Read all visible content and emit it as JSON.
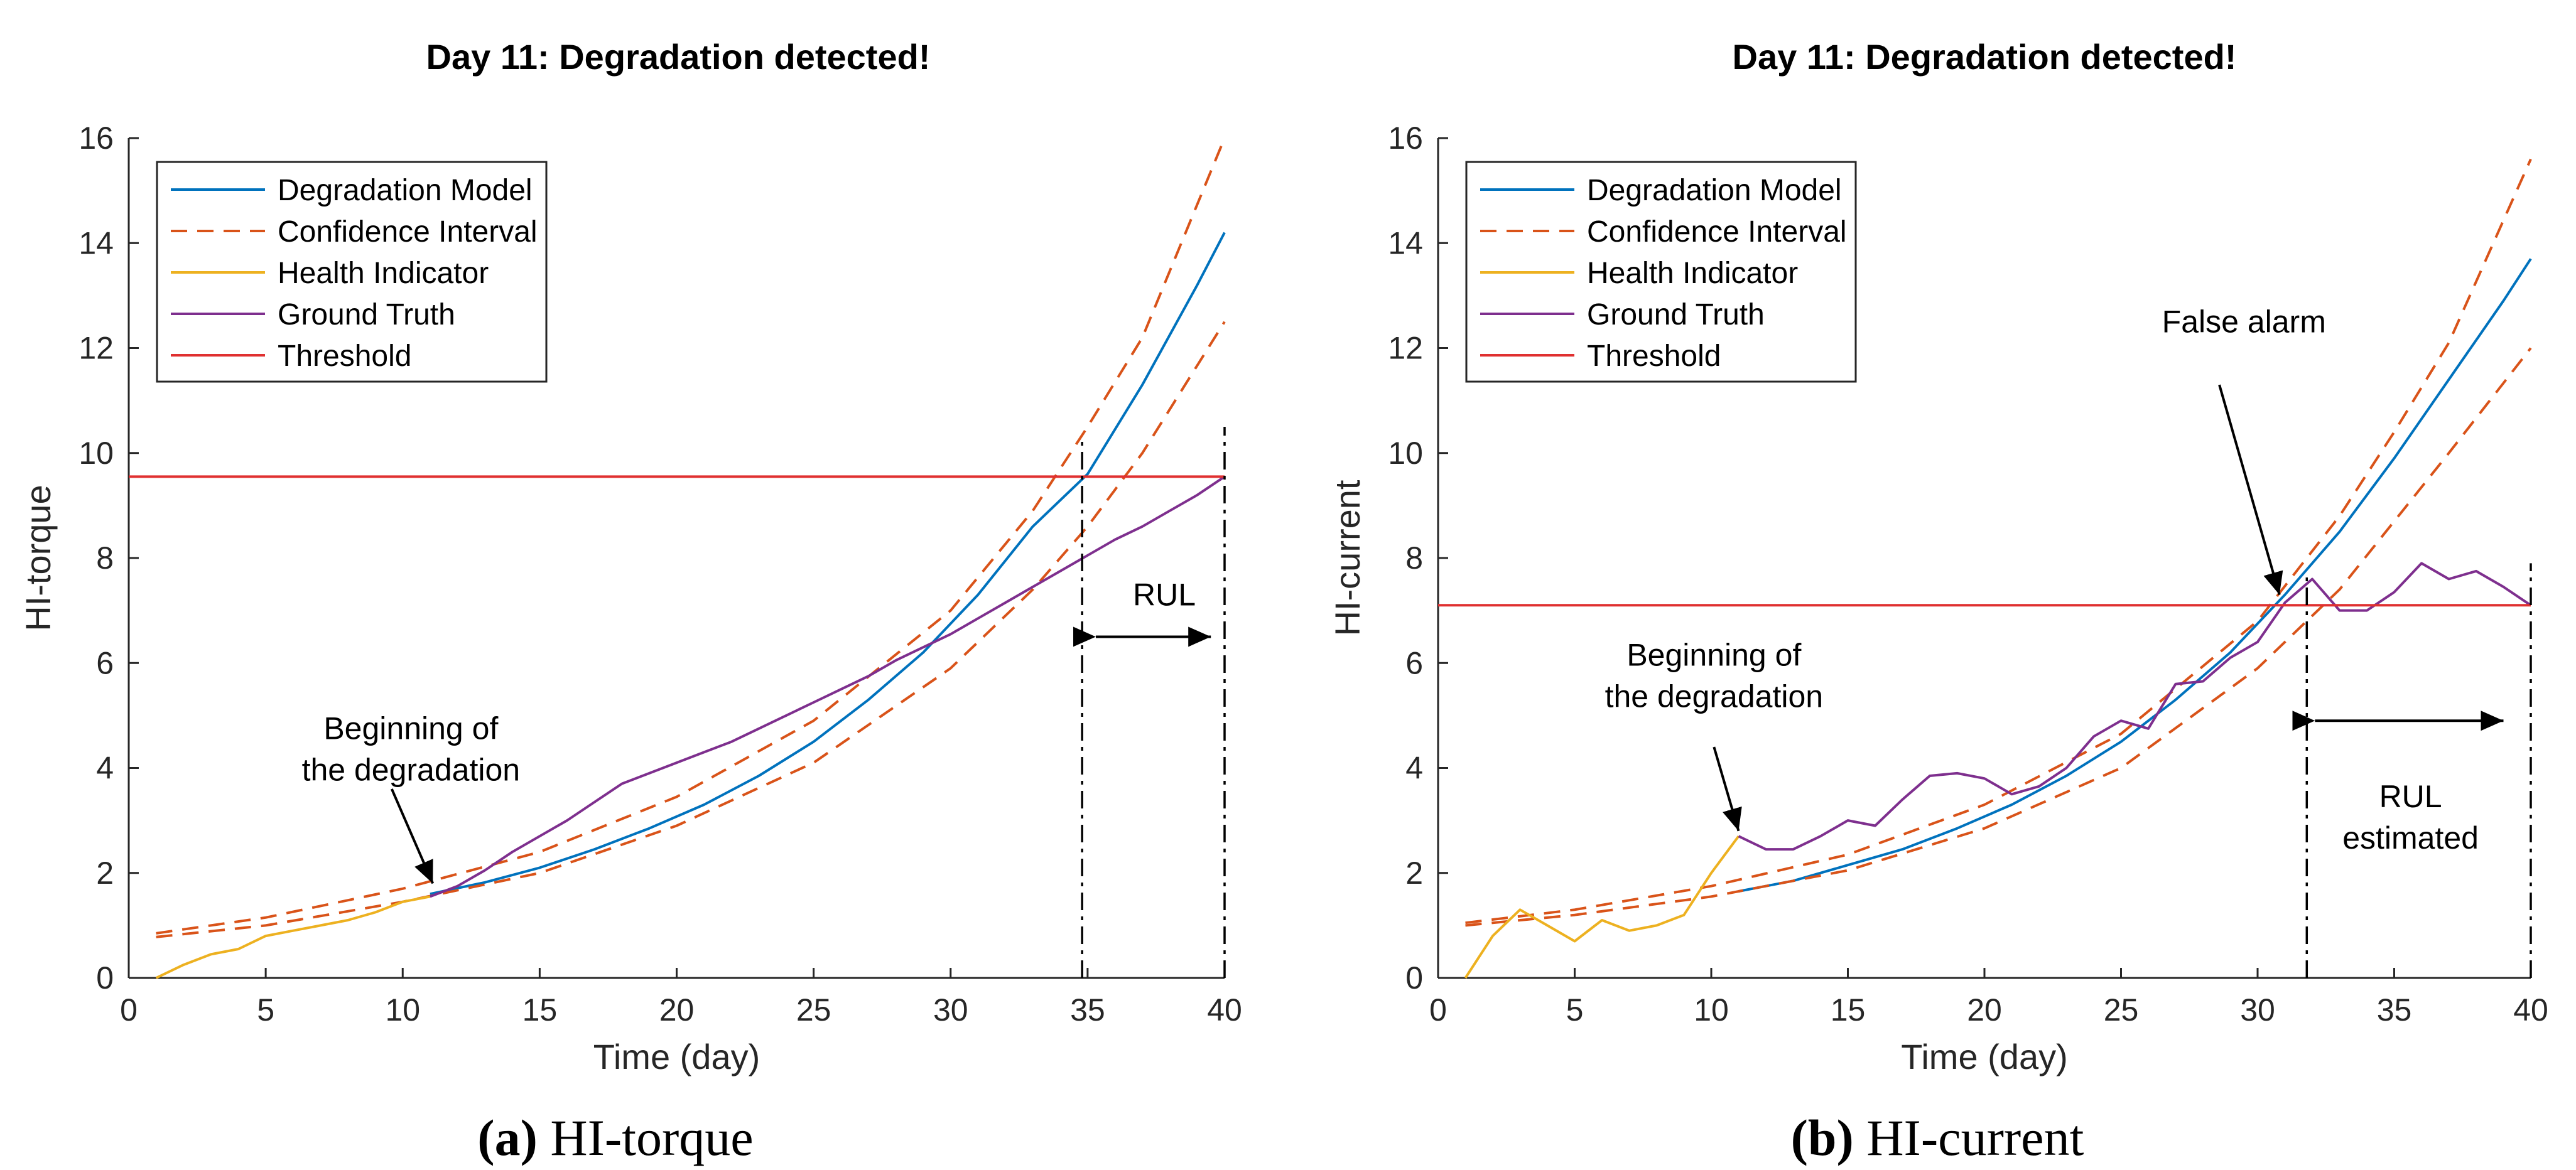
{
  "chart_data": [
    {
      "type": "line",
      "id": "a",
      "title": "Day 11: Degradation detected!",
      "xlabel": "Time (day)",
      "ylabel": "HI-torque",
      "xlim": [
        0,
        40
      ],
      "ylim": [
        0,
        16
      ],
      "xticks": [
        0,
        5,
        10,
        15,
        20,
        25,
        30,
        35,
        40
      ],
      "yticks": [
        0,
        2,
        4,
        6,
        8,
        10,
        12,
        14,
        16
      ],
      "caption_letter": "(a)",
      "caption_text": " HI-torque",
      "legend": {
        "placement": "top-left",
        "entries": [
          "Degradation Model",
          "Confidence Interval",
          "Health Indicator",
          "Ground Truth",
          "Threshold"
        ]
      },
      "series": [
        {
          "name": "Degradation Model",
          "style": "solid",
          "color": "#0072BD",
          "x": [
            11,
            13,
            15,
            17,
            19,
            21,
            23,
            25,
            27,
            29,
            31,
            33,
            35,
            37,
            39,
            40
          ],
          "y": [
            1.6,
            1.82,
            2.1,
            2.45,
            2.85,
            3.3,
            3.85,
            4.5,
            5.3,
            6.2,
            7.3,
            8.6,
            9.6,
            11.3,
            13.2,
            14.2
          ]
        },
        {
          "name": "Confidence Interval",
          "style": "dashed",
          "color": "#D95319",
          "x": [
            1,
            5,
            10,
            15,
            20,
            25,
            30,
            33,
            35,
            37,
            40
          ],
          "y": [
            0.85,
            1.15,
            1.7,
            2.4,
            3.45,
            4.9,
            7.0,
            8.9,
            10.5,
            12.2,
            16.0
          ]
        },
        {
          "name": "Confidence Interval",
          "style": "dashed",
          "color": "#D95319",
          "x": [
            1,
            5,
            10,
            15,
            20,
            25,
            30,
            33,
            35,
            37,
            40
          ],
          "y": [
            0.78,
            1.0,
            1.45,
            2.0,
            2.9,
            4.1,
            5.9,
            7.4,
            8.6,
            10.0,
            12.5
          ]
        },
        {
          "name": "Health Indicator",
          "style": "solid",
          "color": "#EDB120",
          "x": [
            1,
            2,
            3,
            4,
            5,
            6,
            7,
            8,
            9,
            10,
            11
          ],
          "y": [
            0.0,
            0.25,
            0.45,
            0.55,
            0.8,
            0.9,
            1.0,
            1.1,
            1.25,
            1.45,
            1.55
          ]
        },
        {
          "name": "Ground Truth",
          "style": "solid",
          "color": "#7E2F8E",
          "x": [
            11,
            12,
            13,
            14,
            15,
            16,
            17,
            18,
            19,
            20,
            21,
            22,
            23,
            24,
            25,
            26,
            27,
            28,
            29,
            30,
            31,
            32,
            33,
            34,
            35,
            36,
            37,
            38,
            39,
            40
          ],
          "y": [
            1.55,
            1.75,
            2.05,
            2.4,
            2.7,
            3.0,
            3.35,
            3.7,
            3.9,
            4.1,
            4.3,
            4.5,
            4.75,
            5.0,
            5.25,
            5.5,
            5.75,
            6.05,
            6.3,
            6.55,
            6.85,
            7.15,
            7.45,
            7.75,
            8.05,
            8.35,
            8.6,
            8.9,
            9.2,
            9.55
          ]
        },
        {
          "name": "Threshold",
          "style": "solid",
          "color": "#E03030",
          "x": [
            0,
            40
          ],
          "y": [
            9.55,
            9.55
          ]
        }
      ],
      "vlines": [
        {
          "x": 34.8,
          "y0": 0,
          "y1": 10.3
        },
        {
          "x": 40,
          "y0": 0,
          "y1": 10.5
        }
      ],
      "arrows": [
        {
          "from": [
            35.3,
            6.5
          ],
          "to": [
            39.5,
            6.5
          ],
          "double": true
        }
      ],
      "annotations": [
        {
          "lines": [
            "RUL"
          ],
          "x": 37.8,
          "y": 7.1,
          "arrow_from": null,
          "arrow_to": null
        },
        {
          "lines": [
            "Beginning of",
            "the degradation"
          ],
          "x": 10.3,
          "y": 4.55,
          "arrow_from": [
            9.6,
            3.6
          ],
          "arrow_to": [
            11.1,
            1.8
          ]
        }
      ]
    },
    {
      "type": "line",
      "id": "b",
      "title": "Day 11: Degradation detected!",
      "xlabel": "Time (day)",
      "ylabel": "HI-current",
      "xlim": [
        0,
        40
      ],
      "ylim": [
        0,
        16
      ],
      "xticks": [
        0,
        5,
        10,
        15,
        20,
        25,
        30,
        35,
        40
      ],
      "yticks": [
        0,
        2,
        4,
        6,
        8,
        10,
        12,
        14,
        16
      ],
      "caption_letter": "(b)",
      "caption_text": " HI-current",
      "legend": {
        "placement": "top-left",
        "entries": [
          "Degradation Model",
          "Confidence Interval",
          "Health Indicator",
          "Ground Truth",
          "Threshold"
        ]
      },
      "series": [
        {
          "name": "Degradation Model",
          "style": "solid",
          "color": "#0072BD",
          "x": [
            11,
            13,
            15,
            17,
            19,
            21,
            23,
            25,
            27,
            29,
            31,
            33,
            35,
            37,
            39,
            40
          ],
          "y": [
            1.65,
            1.85,
            2.15,
            2.45,
            2.85,
            3.3,
            3.85,
            4.5,
            5.3,
            6.2,
            7.3,
            8.5,
            9.9,
            11.4,
            12.9,
            13.7
          ]
        },
        {
          "name": "Confidence Interval",
          "style": "dashed",
          "color": "#D95319",
          "x": [
            1,
            5,
            10,
            15,
            20,
            25,
            30,
            33,
            35,
            37,
            40
          ],
          "y": [
            1.05,
            1.3,
            1.75,
            2.35,
            3.3,
            4.65,
            6.8,
            8.8,
            10.4,
            12.1,
            15.6
          ]
        },
        {
          "name": "Confidence Interval",
          "style": "dashed",
          "color": "#D95319",
          "x": [
            1,
            5,
            10,
            15,
            20,
            25,
            30,
            33,
            35,
            37,
            40
          ],
          "y": [
            1.0,
            1.2,
            1.55,
            2.05,
            2.85,
            4.0,
            5.9,
            7.4,
            8.7,
            10.0,
            12.0
          ]
        },
        {
          "name": "Health Indicator",
          "style": "solid",
          "color": "#EDB120",
          "x": [
            1,
            2,
            3,
            4,
            5,
            6,
            7,
            8,
            9,
            10,
            11
          ],
          "y": [
            0.0,
            0.8,
            1.3,
            1.0,
            0.7,
            1.1,
            0.9,
            1.0,
            1.2,
            2.0,
            2.7
          ]
        },
        {
          "name": "Ground Truth",
          "style": "solid",
          "color": "#7E2F8E",
          "x": [
            11,
            12,
            13,
            14,
            15,
            16,
            17,
            18,
            19,
            20,
            21,
            22,
            23,
            24,
            25,
            26,
            27,
            28,
            29,
            30,
            31,
            32,
            33,
            34,
            35,
            36,
            37,
            38,
            39,
            40
          ],
          "y": [
            2.7,
            2.45,
            2.45,
            2.7,
            3.0,
            2.9,
            3.4,
            3.85,
            3.9,
            3.8,
            3.5,
            3.65,
            4.0,
            4.6,
            4.9,
            4.75,
            5.6,
            5.65,
            6.1,
            6.4,
            7.15,
            7.6,
            7.0,
            7.0,
            7.35,
            7.9,
            7.6,
            7.75,
            7.45,
            7.1
          ]
        },
        {
          "name": "Threshold",
          "style": "solid",
          "color": "#E03030",
          "x": [
            0,
            40
          ],
          "y": [
            7.1,
            7.1
          ]
        }
      ],
      "vlines": [
        {
          "x": 31.8,
          "y0": 0,
          "y1": 7.7
        },
        {
          "x": 40,
          "y0": 0,
          "y1": 7.9
        }
      ],
      "arrows": [
        {
          "from": [
            32.1,
            4.9
          ],
          "to": [
            39.0,
            4.9
          ],
          "double": true
        }
      ],
      "annotations": [
        {
          "lines": [
            "RUL",
            "estimated"
          ],
          "x": 35.6,
          "y": 3.25,
          "arrow_from": null,
          "arrow_to": null
        },
        {
          "lines": [
            "False alarm"
          ],
          "x": 29.5,
          "y": 12.3,
          "arrow_from": [
            28.6,
            11.3
          ],
          "arrow_to": [
            30.8,
            7.3
          ]
        },
        {
          "lines": [
            "Beginning of",
            "the degradation"
          ],
          "x": 10.1,
          "y": 5.95,
          "arrow_from": [
            10.1,
            4.4
          ],
          "arrow_to": [
            11.0,
            2.8
          ]
        }
      ]
    }
  ]
}
